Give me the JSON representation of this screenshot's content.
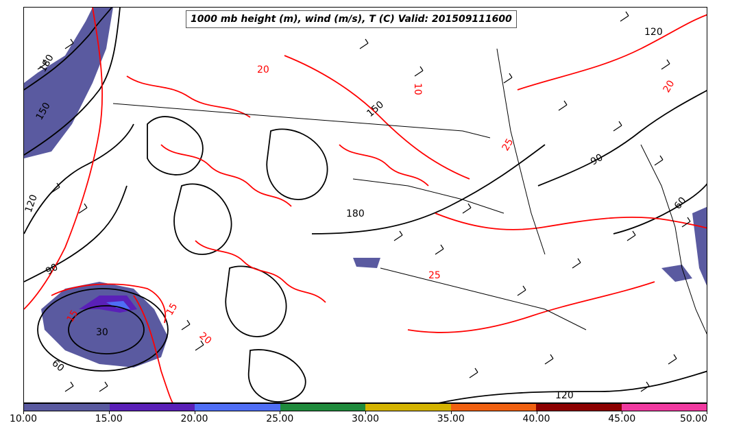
{
  "title": "1000 mb height (m), wind (m/s), T (C) Valid: 201509111600",
  "colorbar": {
    "segments": [
      {
        "color": "#5a5aa0"
      },
      {
        "color": "#5a20b8"
      },
      {
        "color": "#4f6ef5"
      },
      {
        "color": "#1f8a3c"
      },
      {
        "color": "#d4b300"
      },
      {
        "color": "#f06010"
      },
      {
        "color": "#8c0000"
      },
      {
        "color": "#f03aa0"
      }
    ],
    "labels": [
      "10.00",
      "15.00",
      "20.00",
      "25.00",
      "30.00",
      "35.00",
      "40.00",
      "45.00",
      "50.00"
    ]
  },
  "contour_labels": {
    "height": [
      "180",
      "150",
      "120",
      "90",
      "60",
      "30",
      "120",
      "90",
      "60",
      "120",
      "180",
      "150"
    ],
    "temperature": [
      "10",
      "20",
      "25",
      "15",
      "20",
      "25",
      "20",
      "15"
    ]
  },
  "colors": {
    "height_contour": "#000000",
    "temperature_contour": "#ff0000",
    "shading_low": "#5a5aa0",
    "wind_barb": "#000000"
  }
}
